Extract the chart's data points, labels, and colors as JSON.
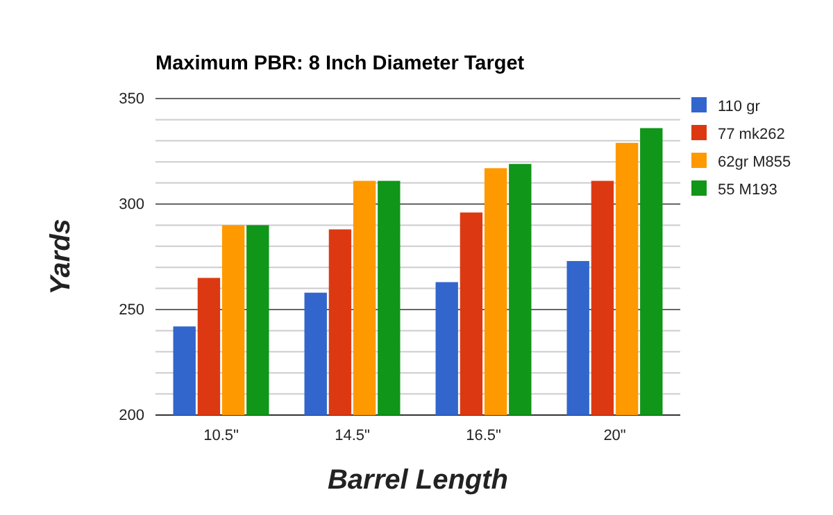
{
  "chart_data": {
    "type": "bar",
    "title": "Maximum PBR: 8 Inch Diameter Target",
    "xlabel": "Barrel Length",
    "ylabel": "Yards",
    "categories": [
      "10.5\"",
      "14.5\"",
      "16.5\"",
      "20\""
    ],
    "series": [
      {
        "name": "110 gr",
        "color": "#3366cc",
        "values": [
          242,
          258,
          263,
          273
        ]
      },
      {
        "name": "77 mk262",
        "color": "#dc3912",
        "values": [
          265,
          288,
          296,
          311
        ]
      },
      {
        "name": "62gr M855",
        "color": "#ff9900",
        "values": [
          290,
          311,
          317,
          329
        ]
      },
      {
        "name": "55 M193",
        "color": "#109618",
        "values": [
          290,
          311,
          319,
          336
        ]
      }
    ],
    "ylim": [
      200,
      350
    ],
    "yticks": [
      200,
      250,
      300,
      350
    ],
    "grid": true,
    "legend": "right"
  }
}
